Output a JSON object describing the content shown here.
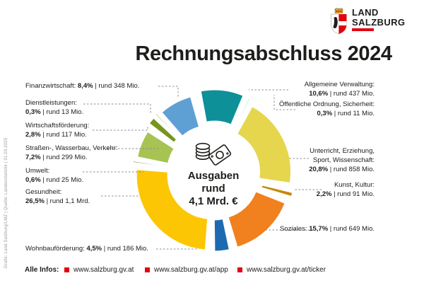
{
  "logo": {
    "line1": "LAND",
    "line2": "SALZBURG",
    "accent_color": "#e3000f"
  },
  "title": "Rechnungsabschluss 2024",
  "center": {
    "line1": "Ausgaben",
    "line2": "rund",
    "line3": "4,1 Mrd. €",
    "icon": "money-icon"
  },
  "credit": "Grafik: Land Salzburg/LMZ | Quelle: Landesstatistik | 31.03.2025",
  "footer": {
    "label": "Alle Infos:",
    "bullet_color": "#e3000f",
    "links": [
      "www.salzburg.gv.at",
      "www.salzburg.gv.at/app",
      "www.salzburg.gv.at/ticker"
    ]
  },
  "chart_data": {
    "type": "pie",
    "subtype": "donut-exploded",
    "title": "Ausgaben rund 4,1 Mrd. €",
    "total_label": "rund 4,1 Mrd. €",
    "unit": "percent",
    "legend_position": "around-chart-with-leader-lines",
    "segments": [
      {
        "key": "allgemeine",
        "label": "Allgemeine Verwaltung",
        "pct": 10.6,
        "pct_label": "10,6%",
        "amount": "rund 437 Mio.",
        "color": "#0d9098"
      },
      {
        "key": "oeffentliche",
        "label": "Öffentliche Ordnung, Sicherheit",
        "pct": 0.3,
        "pct_label": "0,3%",
        "amount": "rund 11 Mio.",
        "color": "#7fc4cc"
      },
      {
        "key": "unterricht",
        "label": "Unterricht, Erziehung, Sport, Wissenschaft",
        "pct": 20.8,
        "pct_label": "20,8%",
        "amount": "rund 858 Mio.",
        "color": "#e6d64d"
      },
      {
        "key": "kunst",
        "label": "Kunst, Kultur",
        "pct": 2.2,
        "pct_label": "2,2%",
        "amount": "rund 91 Mio.",
        "color": "#c8860a"
      },
      {
        "key": "soziales",
        "label": "Soziales",
        "pct": 15.7,
        "pct_label": "15,7%",
        "amount": "rund 649 Mio.",
        "color": "#f0811e"
      },
      {
        "key": "wohnbau",
        "label": "Wohnbauförderung",
        "pct": 4.5,
        "pct_label": "4,5%",
        "amount": "rund 186 Mio.",
        "color": "#1d6ab2"
      },
      {
        "key": "gesundheit",
        "label": "Gesundheit",
        "pct": 26.5,
        "pct_label": "26,5%",
        "amount": "rund 1,1 Mrd.",
        "color": "#fdc605"
      },
      {
        "key": "umwelt",
        "label": "Umwelt",
        "pct": 0.6,
        "pct_label": "0,6%",
        "amount": "rund 25 Mio.",
        "color": "#4e7a24"
      },
      {
        "key": "strassen",
        "label": "Straßen-, Wasserbau, Verkehr",
        "pct": 7.2,
        "pct_label": "7,2%",
        "amount": "rund 299 Mio.",
        "color": "#a7c353"
      },
      {
        "key": "wirtschaft",
        "label": "Wirtschaftsförderung",
        "pct": 2.8,
        "pct_label": "2,8%",
        "amount": "rund 117 Mio.",
        "color": "#76961c"
      },
      {
        "key": "dienst",
        "label": "Dienstleistungen",
        "pct": 0.3,
        "pct_label": "0,3%",
        "amount": "rund 13 Mio.",
        "color": "#8aa437"
      },
      {
        "key": "finanz",
        "label": "Finanzwirtschaft",
        "pct": 8.4,
        "pct_label": "8,4%",
        "amount": "rund 348 Mio.",
        "color": "#5fa0d4"
      }
    ]
  }
}
